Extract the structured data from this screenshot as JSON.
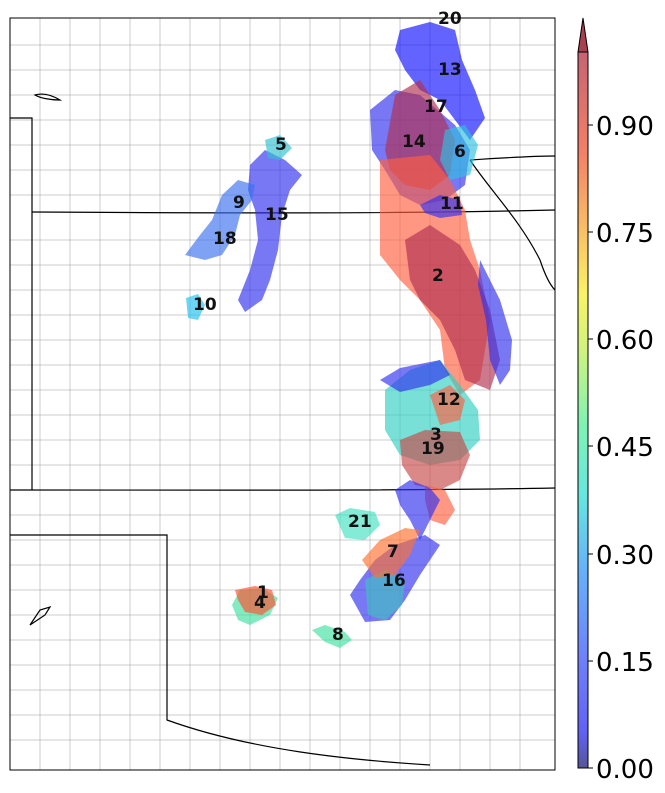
{
  "map": {
    "labels": [
      "20",
      "13",
      "17",
      "14",
      "6",
      "11",
      "5",
      "9",
      "15",
      "18",
      "10",
      "2",
      "12",
      "3",
      "19",
      "21",
      "7",
      "16",
      "1",
      "4",
      "8"
    ]
  },
  "colorbar": {
    "ticks": [
      "0.00",
      "0.15",
      "0.30",
      "0.45",
      "0.60",
      "0.75",
      "0.90"
    ],
    "extend": "max"
  },
  "colors": {
    "low": "#1010ff",
    "mid": "#40e0c0",
    "high": "#ff6040",
    "top": "#b03050"
  }
}
